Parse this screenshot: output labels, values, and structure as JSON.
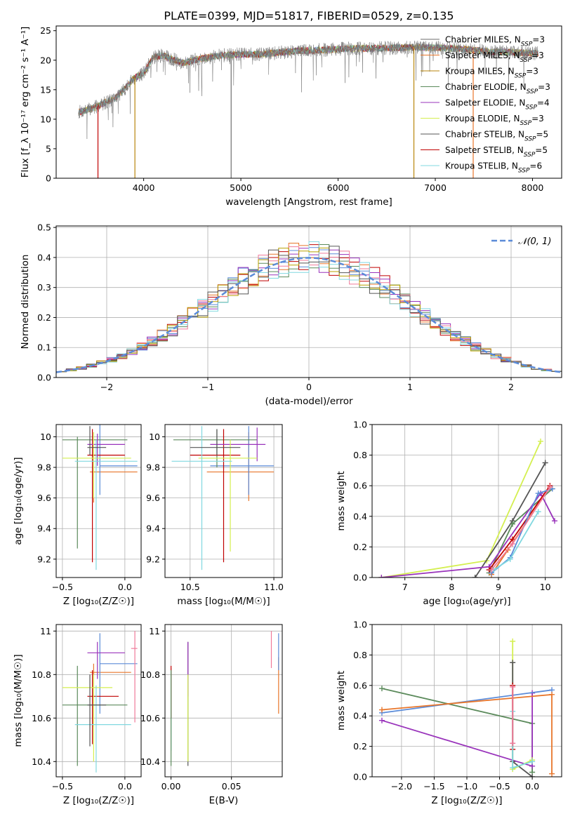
{
  "title": "PLATE=0399, MJD=51817, FIBERID=0529, z=0.135",
  "colors": {
    "blue": "#5b8bd8",
    "orange": "#e8762b",
    "green": "#5b8a5b",
    "red": "#c00000",
    "purple": "#9933bb",
    "olive": "#b8a000",
    "yellow": "#d4ef50",
    "grey": "#6e6e6e",
    "darkgrey": "#555555",
    "pink": "#f07a9a",
    "cyan": "#80d8e0",
    "goldenrod": "#b8860b"
  },
  "chart_data": [
    {
      "id": "spectrum",
      "type": "line",
      "xlabel": "wavelength [Angstrom, rest frame]",
      "ylabel": "Flux [f_λ 10⁻¹⁷ erg cm⁻² s⁻¹ A⁻¹]",
      "xlim": [
        3100,
        8300
      ],
      "ylim": [
        0,
        25.8
      ],
      "xticks": [
        4000,
        5000,
        6000,
        7000,
        8000
      ],
      "yticks": [
        0,
        5,
        10,
        15,
        20,
        25
      ],
      "grid": false,
      "legend_position": "right",
      "envelope": [
        [
          3330,
          11.2
        ],
        [
          3400,
          11.5
        ],
        [
          3500,
          12
        ],
        [
          3600,
          12.8
        ],
        [
          3700,
          13.5
        ],
        [
          3800,
          15
        ],
        [
          3900,
          17
        ],
        [
          4000,
          17.8
        ],
        [
          4100,
          20.5
        ],
        [
          4200,
          20.8
        ],
        [
          4400,
          19.5
        ],
        [
          4600,
          20.3
        ],
        [
          4800,
          20.8
        ],
        [
          5000,
          21
        ],
        [
          5200,
          21
        ],
        [
          5400,
          21.3
        ],
        [
          5600,
          21.6
        ],
        [
          5800,
          21.7
        ],
        [
          6000,
          21.9
        ],
        [
          6200,
          22
        ],
        [
          6400,
          22
        ],
        [
          6600,
          22.1
        ],
        [
          6800,
          22.2
        ],
        [
          7000,
          22.1
        ],
        [
          7200,
          22
        ],
        [
          7400,
          21.7
        ],
        [
          7600,
          21.4
        ],
        [
          7800,
          21.3
        ],
        [
          8000,
          21.2
        ],
        [
          8060,
          21.2
        ]
      ],
      "series": [
        {
          "name_parts": [
            "Chabrier MILES, N",
            "SSP",
            "=3"
          ],
          "color": "#6e6e6e"
        },
        {
          "name_parts": [
            "Salpeter MILES, N",
            "SSP",
            "=3"
          ],
          "color": "#e8762b"
        },
        {
          "name_parts": [
            "Kroupa MILES, N",
            "SSP",
            "=3"
          ],
          "color": "#b8860b"
        },
        {
          "name_parts": [
            "Chabrier ELODIE, N",
            "SSP",
            "=3"
          ],
          "color": "#5b8a5b"
        },
        {
          "name_parts": [
            "Salpeter ELODIE, N",
            "SSP",
            "=4"
          ],
          "color": "#9933bb"
        },
        {
          "name_parts": [
            "Kroupa ELODIE, N",
            "SSP",
            "=3"
          ],
          "color": "#d4ef50"
        },
        {
          "name_parts": [
            "Chabrier STELIB, N",
            "SSP",
            "=5"
          ],
          "color": "#555555"
        },
        {
          "name_parts": [
            "Salpeter STELIB, N",
            "SSP",
            "=5"
          ],
          "color": "#c00000"
        },
        {
          "name_parts": [
            "Kroupa STELIB, N",
            "SSP",
            "=6"
          ],
          "color": "#80d8e0"
        }
      ],
      "spikes": [
        [
          3530,
          "#c00000"
        ],
        [
          3910,
          "#b8860b"
        ],
        [
          4900,
          "#6e6e6e"
        ],
        [
          6780,
          "#b8860b"
        ],
        [
          7390,
          "#e8762b"
        ]
      ]
    },
    {
      "id": "residuals",
      "type": "histogram",
      "xlabel": "(data-model)/error",
      "ylabel": "Normed distribution",
      "xlim": [
        -2.5,
        2.5
      ],
      "ylim": [
        0,
        0.505
      ],
      "xticks": [
        -2,
        -1,
        0,
        1,
        2
      ],
      "yticks": [
        0,
        0.1,
        0.2,
        0.3,
        0.4,
        0.5
      ],
      "xtick_labels": [
        "−2",
        "−1",
        "0",
        "1",
        "2"
      ],
      "grid": true,
      "legend": "𝒩(0, 1)",
      "legend_position": "top-right",
      "bin_width": 0.1,
      "hist_colors": [
        "#5b8bd8",
        "#e8762b",
        "#5b8a5b",
        "#c00000",
        "#9933bb",
        "#f07a9a",
        "#80d8e0",
        "#b8a000",
        "#555555"
      ]
    },
    {
      "id": "age-vs-Z",
      "type": "scatter",
      "xlabel": "Z [log₁₀(Z/Z☉)]",
      "ylabel": "age  [log₁₀(age/yr)]",
      "xlim": [
        -0.55,
        0.13
      ],
      "ylim": [
        9.08,
        10.08
      ],
      "xticks": [
        -0.5,
        0.0
      ],
      "yticks": [
        9.2,
        9.4,
        9.6,
        9.8,
        10.0
      ],
      "xtick_labels": [
        "−0.5",
        "0.0"
      ],
      "grid": true,
      "points": [
        {
          "x": -0.25,
          "y": 9.77,
          "xlo": -0.28,
          "xhi": 0.1,
          "ylo": 9.57,
          "yhi": 9.95,
          "color": "#e8762b"
        },
        {
          "x": -0.2,
          "y": 9.81,
          "xlo": -0.2,
          "xhi": 0.1,
          "ylo": 9.62,
          "yhi": 10.08,
          "color": "#5b8bd8"
        },
        {
          "x": -0.38,
          "y": 9.98,
          "xlo": -0.5,
          "xhi": 0.02,
          "ylo": 9.27,
          "yhi": 10.0,
          "color": "#5b8a5b"
        },
        {
          "x": -0.26,
          "y": 9.88,
          "xlo": -0.3,
          "xhi": 0.0,
          "ylo": 9.18,
          "yhi": 10.05,
          "color": "#c00000"
        },
        {
          "x": -0.22,
          "y": 9.95,
          "xlo": -0.3,
          "xhi": 0.0,
          "ylo": 9.81,
          "yhi": 10.02,
          "color": "#9933bb"
        },
        {
          "x": -0.25,
          "y": 9.86,
          "xlo": -0.5,
          "xhi": 0.05,
          "ylo": 9.6,
          "yhi": 10.03,
          "color": "#d4ef50"
        },
        {
          "x": -0.23,
          "y": 9.84,
          "xlo": -0.4,
          "xhi": 0.1,
          "ylo": 9.13,
          "yhi": 9.98,
          "color": "#80d8e0"
        },
        {
          "x": -0.28,
          "y": 9.93,
          "xlo": -0.3,
          "xhi": -0.15,
          "ylo": 9.88,
          "yhi": 10.07,
          "color": "#555555"
        }
      ]
    },
    {
      "id": "age-vs-mass",
      "type": "scatter",
      "xlabel": "mass [log₁₀(M/M☉)]",
      "ylabel": "",
      "xlim": [
        10.35,
        11.05
      ],
      "ylim": [
        9.08,
        10.08
      ],
      "xticks": [
        10.5,
        11.0
      ],
      "yticks": [
        9.2,
        9.4,
        9.6,
        9.8,
        10.0
      ],
      "xtick_labels": [
        "10.5",
        "11.0"
      ],
      "grid": true,
      "points": [
        {
          "x": 10.85,
          "y": 9.77,
          "xlo": 10.6,
          "xhi": 11.0,
          "ylo": 9.58,
          "yhi": 10.03,
          "color": "#e8762b"
        },
        {
          "x": 10.85,
          "y": 9.81,
          "xlo": 10.62,
          "xhi": 11.0,
          "ylo": 9.62,
          "yhi": 10.07,
          "color": "#5b8bd8"
        },
        {
          "x": 10.66,
          "y": 9.98,
          "xlo": 10.4,
          "xhi": 10.9,
          "ylo": 9.8,
          "yhi": 10.05,
          "color": "#5b8a5b"
        },
        {
          "x": 10.7,
          "y": 9.88,
          "xlo": 10.5,
          "xhi": 10.8,
          "ylo": 9.18,
          "yhi": 10.05,
          "color": "#c00000"
        },
        {
          "x": 10.9,
          "y": 9.95,
          "xlo": 10.62,
          "xhi": 10.95,
          "ylo": 9.84,
          "yhi": 10.06,
          "color": "#9933bb"
        },
        {
          "x": 10.74,
          "y": 9.86,
          "xlo": 10.55,
          "xhi": 10.9,
          "ylo": 9.25,
          "yhi": 9.98,
          "color": "#d4ef50"
        },
        {
          "x": 10.57,
          "y": 9.84,
          "xlo": 10.39,
          "xhi": 10.75,
          "ylo": 9.13,
          "yhi": 10.07,
          "color": "#80d8e0"
        },
        {
          "x": 10.66,
          "y": 9.93,
          "xlo": 10.5,
          "xhi": 10.8,
          "ylo": 9.88,
          "yhi": 10.05,
          "color": "#555555"
        }
      ]
    },
    {
      "id": "weight-vs-age",
      "type": "line",
      "xlabel": "age  [log₁₀(age/yr)]",
      "ylabel": "mass weight",
      "xlim": [
        6.3,
        10.35
      ],
      "ylim": [
        0,
        1.0
      ],
      "xticks": [
        7,
        8,
        9,
        10
      ],
      "yticks": [
        0,
        0.2,
        0.4,
        0.6,
        0.8,
        1.0
      ],
      "xtick_labels": [
        "7",
        "8",
        "9",
        "10"
      ],
      "grid": true,
      "series": [
        {
          "color": "#d4ef50",
          "pts": [
            [
              6.5,
              0.0
            ],
            [
              8.75,
              0.11
            ],
            [
              9.9,
              0.89
            ]
          ]
        },
        {
          "color": "#555555",
          "pts": [
            [
              8.5,
              0.0
            ],
            [
              9.3,
              0.37
            ],
            [
              10.0,
              0.75
            ]
          ]
        },
        {
          "color": "#5b8a5b",
          "pts": [
            [
              8.8,
              0.03
            ],
            [
              9.3,
              0.35
            ],
            [
              10.15,
              0.58
            ]
          ]
        },
        {
          "color": "#9933bb",
          "pts": [
            [
              6.5,
              0.0
            ],
            [
              8.8,
              0.07
            ],
            [
              9.9,
              0.55
            ],
            [
              10.2,
              0.37
            ]
          ]
        },
        {
          "color": "#c00000",
          "pts": [
            [
              8.8,
              0.05
            ],
            [
              9.3,
              0.25
            ],
            [
              10.1,
              0.6
            ]
          ]
        },
        {
          "color": "#e8762b",
          "pts": [
            [
              8.85,
              0.02
            ],
            [
              9.2,
              0.18
            ],
            [
              10.1,
              0.59
            ]
          ]
        },
        {
          "color": "#5b8bd8",
          "pts": [
            [
              8.85,
              0.03
            ],
            [
              9.25,
              0.13
            ],
            [
              9.85,
              0.55
            ],
            [
              10.15,
              0.58
            ]
          ]
        },
        {
          "color": "#80d8e0",
          "pts": [
            [
              8.9,
              0.05
            ],
            [
              9.25,
              0.12
            ],
            [
              9.85,
              0.43
            ]
          ]
        },
        {
          "color": "#f07a9a",
          "pts": [
            [
              8.85,
              0.05
            ],
            [
              9.3,
              0.22
            ],
            [
              10.1,
              0.59
            ]
          ]
        }
      ]
    },
    {
      "id": "mass-vs-Z",
      "type": "scatter",
      "xlabel": "Z [log₁₀(Z/Z☉)]",
      "ylabel": "mass [log₁₀(M/M☉)]",
      "xlim": [
        -0.55,
        0.13
      ],
      "ylim": [
        10.33,
        11.03
      ],
      "xticks": [
        -0.5,
        0.0
      ],
      "yticks": [
        10.4,
        10.6,
        10.8,
        11.0
      ],
      "xtick_labels": [
        "−0.5",
        "0.0"
      ],
      "grid": true,
      "points": [
        {
          "x": -0.25,
          "y": 10.81,
          "xlo": -0.28,
          "xhi": 0.05,
          "ylo": 10.56,
          "yhi": 10.85,
          "color": "#e8762b"
        },
        {
          "x": -0.2,
          "y": 10.85,
          "xlo": -0.2,
          "xhi": 0.1,
          "ylo": 10.62,
          "yhi": 10.99,
          "color": "#5b8bd8"
        },
        {
          "x": -0.38,
          "y": 10.66,
          "xlo": -0.5,
          "xhi": 0.02,
          "ylo": 10.38,
          "yhi": 10.84,
          "color": "#5b8a5b"
        },
        {
          "x": -0.26,
          "y": 10.7,
          "xlo": -0.3,
          "xhi": -0.05,
          "ylo": 10.48,
          "yhi": 10.82,
          "color": "#c00000"
        },
        {
          "x": -0.22,
          "y": 10.9,
          "xlo": -0.3,
          "xhi": 0.0,
          "ylo": 10.78,
          "yhi": 10.95,
          "color": "#9933bb"
        },
        {
          "x": -0.25,
          "y": 10.74,
          "xlo": -0.5,
          "xhi": -0.1,
          "ylo": 10.4,
          "yhi": 10.8,
          "color": "#d4ef50"
        },
        {
          "x": -0.23,
          "y": 10.57,
          "xlo": -0.4,
          "xhi": 0.05,
          "ylo": 10.35,
          "yhi": 10.75,
          "color": "#80d8e0"
        },
        {
          "x": -0.28,
          "y": 10.66,
          "xlo": -0.3,
          "xhi": -0.15,
          "ylo": 10.47,
          "yhi": 10.8,
          "color": "#555555"
        },
        {
          "x": 0.08,
          "y": 10.92,
          "xlo": 0.05,
          "xhi": 0.1,
          "ylo": 10.58,
          "yhi": 11.0,
          "color": "#f07a9a"
        }
      ]
    },
    {
      "id": "mass-vs-EBV",
      "type": "scatter",
      "xlabel": "E(B-V)",
      "ylabel": "",
      "xlim": [
        -0.005,
        0.092
      ],
      "ylim": [
        10.33,
        11.03
      ],
      "xticks": [
        0.0,
        0.05
      ],
      "yticks": [
        10.4,
        10.6,
        10.8,
        11.0
      ],
      "xtick_labels": [
        "0.00",
        "0.05"
      ],
      "grid": true,
      "points": [
        {
          "x": 0.0,
          "ylo": 10.45,
          "yhi": 10.83,
          "color": "#80d8e0"
        },
        {
          "x": 0.0,
          "ylo": 10.6,
          "yhi": 10.84,
          "color": "#c00000"
        },
        {
          "x": 0.0,
          "ylo": 10.38,
          "yhi": 10.82,
          "color": "#5b8a5b"
        },
        {
          "x": 0.014,
          "ylo": 10.38,
          "yhi": 10.95,
          "color": "#555555"
        },
        {
          "x": 0.014,
          "ylo": 10.7,
          "yhi": 10.95,
          "color": "#9933bb"
        },
        {
          "x": 0.014,
          "ylo": 10.4,
          "yhi": 10.8,
          "color": "#d4ef50"
        },
        {
          "x": 0.083,
          "ylo": 10.83,
          "yhi": 11.0,
          "color": "#f07a9a"
        },
        {
          "x": 0.089,
          "ylo": 10.62,
          "yhi": 10.88,
          "color": "#e8762b"
        },
        {
          "x": 0.089,
          "ylo": 10.82,
          "yhi": 10.99,
          "color": "#5b8bd8"
        }
      ]
    },
    {
      "id": "weight-vs-Z",
      "type": "line",
      "xlabel": "Z [log₁₀(Z/Z☉)]",
      "ylabel": "mass weight",
      "xlim": [
        -2.45,
        0.45
      ],
      "ylim": [
        0,
        1.0
      ],
      "xticks": [
        -2.0,
        -1.5,
        -1.0,
        -0.5,
        0.0
      ],
      "yticks": [
        0,
        0.2,
        0.4,
        0.6,
        0.8,
        1.0
      ],
      "xtick_labels": [
        "−2.0",
        "−1.5",
        "−1.0",
        "−0.5",
        "0.0"
      ],
      "grid": true,
      "series": [
        {
          "color": "#5b8a5b",
          "pts": [
            [
              -2.3,
              0.58
            ],
            [
              0.0,
              0.35
            ],
            [
              0.0,
              0.03
            ]
          ]
        },
        {
          "color": "#9933bb",
          "pts": [
            [
              -2.3,
              0.37
            ],
            [
              0.0,
              0.07
            ],
            [
              0.0,
              0.55
            ]
          ]
        },
        {
          "color": "#5b8bd8",
          "pts": [
            [
              -2.3,
              0.42
            ],
            [
              0.3,
              0.57
            ]
          ]
        },
        {
          "color": "#e8762b",
          "pts": [
            [
              -2.3,
              0.44
            ],
            [
              0.3,
              0.54
            ],
            [
              0.3,
              0.02
            ]
          ]
        },
        {
          "color": "#d4ef50",
          "pts": [
            [
              -0.3,
              0.89
            ],
            [
              -0.3,
              0.05
            ],
            [
              0.0,
              0.11
            ]
          ]
        },
        {
          "color": "#555555",
          "pts": [
            [
              -0.3,
              0.75
            ],
            [
              -0.3,
              0.1
            ],
            [
              0.0,
              0.0
            ]
          ]
        },
        {
          "color": "#c00000",
          "pts": [
            [
              -0.3,
              0.6
            ],
            [
              -0.3,
              0.18
            ]
          ]
        },
        {
          "color": "#80d8e0",
          "pts": [
            [
              -0.3,
              0.43
            ],
            [
              -0.3,
              0.06
            ],
            [
              0.0,
              0.1
            ]
          ]
        },
        {
          "color": "#f07a9a",
          "pts": [
            [
              -0.3,
              0.59
            ],
            [
              -0.3,
              0.22
            ]
          ]
        }
      ]
    }
  ]
}
